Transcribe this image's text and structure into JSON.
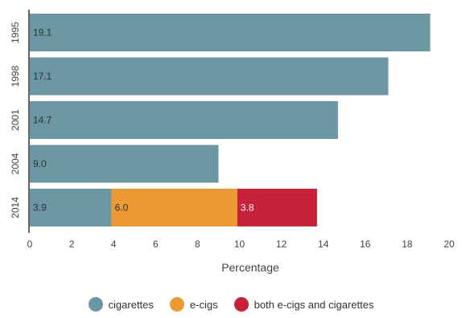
{
  "chart_data": {
    "type": "bar",
    "orientation": "horizontal",
    "stacked": true,
    "categories": [
      "1995",
      "1998",
      "2001",
      "2004",
      "2014"
    ],
    "series": [
      {
        "name": "cigarettes",
        "color": "#6b97a3",
        "values": [
          19.1,
          17.1,
          14.7,
          9.0,
          3.9
        ],
        "labels": [
          "19.1",
          "17.1",
          "14.7",
          "9.0",
          "3.9"
        ]
      },
      {
        "name": "e-cigs",
        "color": "#eb9a34",
        "values": [
          0,
          0,
          0,
          0,
          6.0
        ],
        "labels": [
          "",
          "",
          "",
          "",
          "6.0"
        ]
      },
      {
        "name": "both e-cigs and cigarettes",
        "color": "#c8213a",
        "values": [
          0,
          0,
          0,
          0,
          3.8
        ],
        "labels": [
          "",
          "",
          "",
          "",
          "3.8"
        ]
      }
    ],
    "xlabel": "Percentage",
    "ylabel": "",
    "xlim": [
      0,
      20
    ],
    "xticks": [
      "0",
      "2",
      "4",
      "6",
      "8",
      "10",
      "12",
      "14",
      "16",
      "18",
      "20"
    ],
    "grid": false,
    "legend": "bottom-center"
  }
}
